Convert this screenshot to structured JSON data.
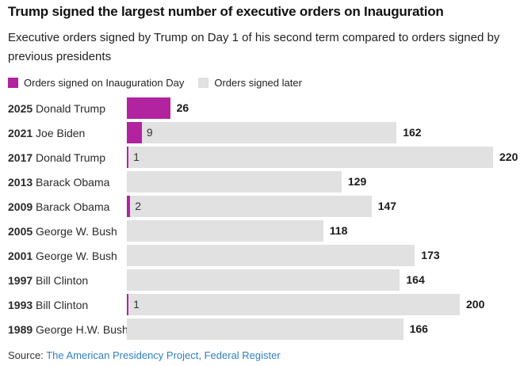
{
  "title": "Trump signed the largest number of executive orders on Inauguration",
  "subtitle": "Executive orders signed by Trump on Day 1 of his second term compared to orders signed by previous presidents",
  "legend": {
    "inauguration": {
      "label": "Orders signed on Inauguration Day",
      "color": "#b2239f"
    },
    "later": {
      "label": "Orders signed later",
      "color": "#e1e1e1"
    }
  },
  "source": {
    "prefix": "Source: ",
    "link_text": "The American Presidency Project, Federal Register",
    "link_color": "#2f80c3"
  },
  "colors": {
    "inauguration_bar": "#b2239f",
    "later_bar": "#e1e1e1",
    "title_text": "#111111",
    "body_text": "#222222",
    "value_text": "#1a1a1a"
  },
  "chart_data": {
    "type": "bar",
    "orientation": "horizontal",
    "title": "Trump signed the largest number of executive orders on Inauguration",
    "subtitle": "Executive orders signed by Trump on Day 1 of his second term compared to orders signed by previous presidents",
    "legend_position": "top",
    "grid": false,
    "xlim": [
      0,
      222
    ],
    "categories": [
      "2025 Donald Trump",
      "2021 Joe Biden",
      "2017 Donald Trump",
      "2013 Barack Obama",
      "2009 Barack Obama",
      "2005 George W. Bush",
      "2001 George W. Bush",
      "1997 Bill Clinton",
      "1993 Bill Clinton",
      "1989 George H.W. Bush"
    ],
    "series": [
      {
        "name": "Orders signed on Inauguration Day",
        "color": "#b2239f",
        "values": [
          26,
          9,
          1,
          0,
          2,
          0,
          0,
          0,
          1,
          0
        ]
      },
      {
        "name": "Orders signed later",
        "color": "#e1e1e1",
        "values": [
          0,
          162,
          220,
          129,
          147,
          118,
          173,
          164,
          200,
          166
        ]
      }
    ],
    "rows": [
      {
        "year": "2025",
        "president": "Donald Trump",
        "inauguration": 26,
        "later": 0
      },
      {
        "year": "2021",
        "president": "Joe Biden",
        "inauguration": 9,
        "later": 162
      },
      {
        "year": "2017",
        "president": "Donald Trump",
        "inauguration": 1,
        "later": 220
      },
      {
        "year": "2013",
        "president": "Barack Obama",
        "inauguration": 0,
        "later": 129
      },
      {
        "year": "2009",
        "president": "Barack Obama",
        "inauguration": 2,
        "later": 147
      },
      {
        "year": "2005",
        "president": "George W. Bush",
        "inauguration": 0,
        "later": 118
      },
      {
        "year": "2001",
        "president": "George W. Bush",
        "inauguration": 0,
        "later": 173
      },
      {
        "year": "1997",
        "president": "Bill Clinton",
        "inauguration": 0,
        "later": 164
      },
      {
        "year": "1993",
        "president": "Bill Clinton",
        "inauguration": 1,
        "later": 200
      },
      {
        "year": "1989",
        "president": "George H.W. Bush",
        "inauguration": 0,
        "later": 166
      }
    ]
  }
}
